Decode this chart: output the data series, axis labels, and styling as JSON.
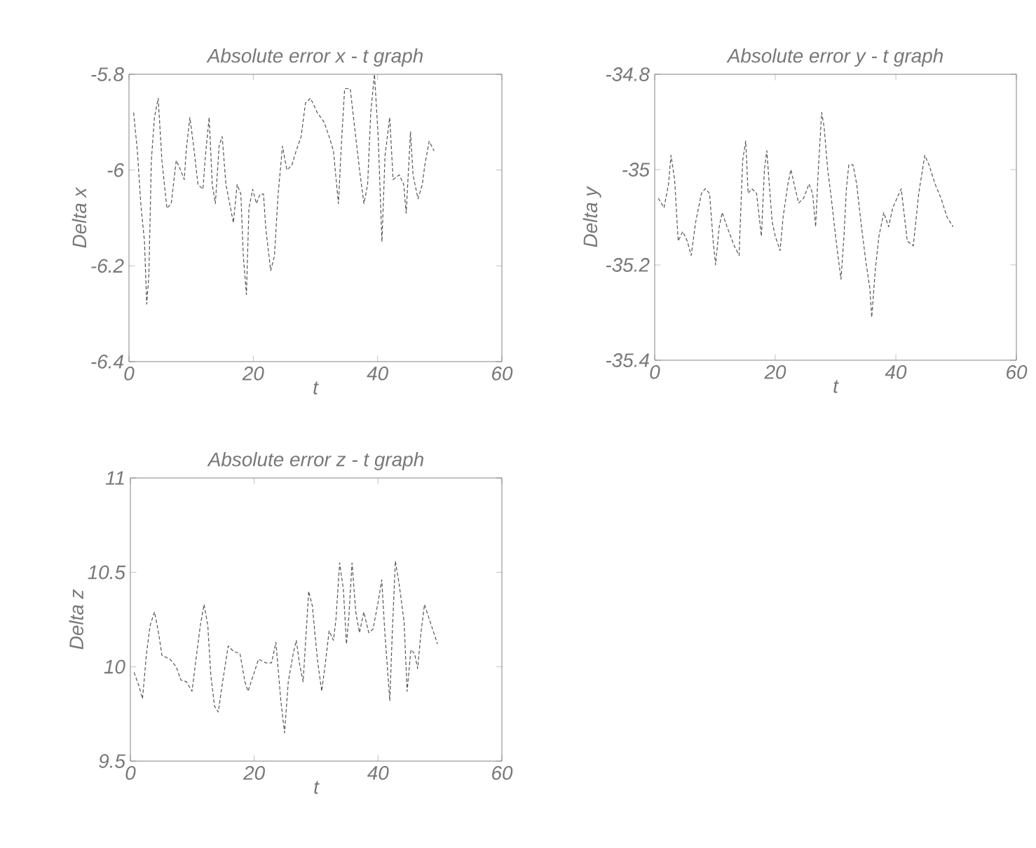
{
  "chart_data": [
    {
      "type": "line",
      "title": "Absolute error x - t graph",
      "xlabel": "t",
      "ylabel": "Delta x",
      "color": "#555555",
      "line_style": "dashed",
      "marker": "none",
      "grid": false,
      "xlim": [
        0,
        60
      ],
      "ylim": [
        -6.4,
        -5.8
      ],
      "xticks": [
        0,
        20,
        40,
        60
      ],
      "yticks": [
        -6.4,
        -6.2,
        -6,
        -5.8
      ],
      "x": [
        0.75,
        1.35,
        1.9,
        2.5,
        2.85,
        3.2,
        3.6,
        4.1,
        4.7,
        5.3,
        6.1,
        6.8,
        7.6,
        8.3,
        8.9,
        9.2,
        9.8,
        10.4,
        11.1,
        11.9,
        12.3,
        12.9,
        13.4,
        13.9,
        14.5,
        15.0,
        15.6,
        16.2,
        16.8,
        17.4,
        18.0,
        18.4,
        18.9,
        19.3,
        19.9,
        20.5,
        21.1,
        21.65,
        22.0,
        22.8,
        23.4,
        24.0,
        24.7,
        25.4,
        26.2,
        26.9,
        27.7,
        28.4,
        29.2,
        30.3,
        31.4,
        32.2,
        32.9,
        33.7,
        34.2,
        34.7,
        35.6,
        36.3,
        37.1,
        37.8,
        38.4,
        38.9,
        39.5,
        40.1,
        40.7,
        41.2,
        41.95,
        42.5,
        43.5,
        44.2,
        44.6,
        45.3,
        45.7,
        46.5,
        47.2,
        47.6,
        48.3,
        49.1
      ],
      "values": [
        -5.88,
        -5.96,
        -6.07,
        -6.15,
        -6.28,
        -6.22,
        -5.98,
        -5.89,
        -5.85,
        -5.98,
        -6.08,
        -6.07,
        -5.98,
        -6.0,
        -6.02,
        -5.96,
        -5.89,
        -5.95,
        -6.03,
        -6.04,
        -5.97,
        -5.89,
        -6.03,
        -6.07,
        -5.95,
        -5.93,
        -6.03,
        -6.07,
        -6.11,
        -6.03,
        -6.05,
        -6.18,
        -6.26,
        -6.08,
        -6.04,
        -6.07,
        -6.05,
        -6.05,
        -6.12,
        -6.21,
        -6.18,
        -6.05,
        -5.95,
        -6.0,
        -5.99,
        -5.96,
        -5.93,
        -5.86,
        -5.85,
        -5.88,
        -5.9,
        -5.93,
        -5.96,
        -6.07,
        -5.94,
        -5.83,
        -5.83,
        -5.91,
        -6.0,
        -6.07,
        -6.03,
        -5.88,
        -5.8,
        -5.93,
        -6.15,
        -5.97,
        -5.89,
        -6.02,
        -6.01,
        -6.03,
        -6.09,
        -5.92,
        -6.01,
        -6.06,
        -6.03,
        -5.99,
        -5.94,
        -5.96
      ]
    },
    {
      "type": "line",
      "title": "Absolute error y - t graph",
      "xlabel": "t",
      "ylabel": "Delta y",
      "color": "#555555",
      "line_style": "dashed",
      "marker": "none",
      "grid": false,
      "xlim": [
        0,
        60
      ],
      "ylim": [
        -35.4,
        -34.8
      ],
      "xticks": [
        0,
        20,
        40,
        60
      ],
      "yticks": [
        -35.4,
        -35.2,
        -35,
        -34.8
      ],
      "x": [
        0.6,
        1.55,
        2.3,
        2.7,
        3.3,
        3.9,
        4.65,
        5.4,
        6.05,
        6.8,
        7.75,
        8.4,
        9.1,
        9.7,
        10.1,
        10.7,
        11.2,
        12.0,
        13.2,
        14.0,
        14.6,
        15.1,
        15.5,
        16.1,
        16.9,
        17.7,
        18.2,
        18.6,
        19.0,
        19.5,
        20.0,
        20.8,
        21.3,
        22.1,
        22.6,
        23.3,
        23.9,
        24.7,
        25.6,
        26.2,
        26.7,
        27.1,
        27.7,
        28.1,
        28.7,
        29.3,
        30.1,
        30.9,
        31.4,
        31.8,
        32.2,
        32.9,
        33.5,
        34.3,
        35.0,
        35.7,
        36.0,
        36.6,
        37.2,
        38.0,
        38.8,
        39.5,
        40.9,
        41.9,
        42.9,
        43.8,
        44.8,
        45.5,
        46.5,
        47.5,
        48.5,
        49.5
      ],
      "values": [
        -35.06,
        -35.08,
        -35.03,
        -34.97,
        -35.02,
        -35.15,
        -35.13,
        -35.15,
        -35.18,
        -35.11,
        -35.05,
        -35.04,
        -35.05,
        -35.15,
        -35.2,
        -35.12,
        -35.09,
        -35.12,
        -35.16,
        -35.18,
        -34.98,
        -34.94,
        -35.05,
        -35.04,
        -35.05,
        -35.14,
        -35.0,
        -34.96,
        -35.03,
        -35.11,
        -35.14,
        -35.17,
        -35.1,
        -35.03,
        -35.0,
        -35.04,
        -35.07,
        -35.06,
        -35.03,
        -35.05,
        -35.12,
        -35.01,
        -34.88,
        -34.91,
        -35.0,
        -35.06,
        -35.15,
        -35.23,
        -35.14,
        -35.04,
        -34.99,
        -34.99,
        -35.03,
        -35.12,
        -35.19,
        -35.25,
        -35.31,
        -35.21,
        -35.14,
        -35.09,
        -35.12,
        -35.08,
        -35.04,
        -35.15,
        -35.16,
        -35.05,
        -34.97,
        -34.99,
        -35.03,
        -35.06,
        -35.1,
        -35.12
      ]
    },
    {
      "type": "line",
      "title": "Absolute error z - t graph",
      "xlabel": "t",
      "ylabel": "Delta z",
      "color": "#555555",
      "line_style": "dashed",
      "marker": "none",
      "grid": false,
      "xlim": [
        0,
        60
      ],
      "ylim": [
        9.5,
        11
      ],
      "xticks": [
        0,
        20,
        40,
        60
      ],
      "yticks": [
        9.5,
        10,
        10.5,
        11
      ],
      "x": [
        0.6,
        1.36,
        1.96,
        2.6,
        3.2,
        3.9,
        4.5,
        5.1,
        6.4,
        7.4,
        8.15,
        9.05,
        9.96,
        10.6,
        11.3,
        11.9,
        12.5,
        13.0,
        13.6,
        14.2,
        14.9,
        15.8,
        16.7,
        17.7,
        18.5,
        19.0,
        19.8,
        20.7,
        21.9,
        22.8,
        23.5,
        24.3,
        24.9,
        25.5,
        26.3,
        26.8,
        27.3,
        27.9,
        28.8,
        29.4,
        30.2,
        30.9,
        31.5,
        32.1,
        32.8,
        33.2,
        33.8,
        34.4,
        34.9,
        35.3,
        35.8,
        36.4,
        37.0,
        37.7,
        38.5,
        39.2,
        40.0,
        40.6,
        41.1,
        41.9,
        42.3,
        42.8,
        43.4,
        44.2,
        44.7,
        45.3,
        45.9,
        46.4,
        46.9,
        47.5,
        48.4,
        49.6
      ],
      "values": [
        9.97,
        9.9,
        9.83,
        10.07,
        10.22,
        10.29,
        10.19,
        10.06,
        10.04,
        10.0,
        9.93,
        9.92,
        9.87,
        10.04,
        10.22,
        10.33,
        10.22,
        9.95,
        9.79,
        9.76,
        9.92,
        10.11,
        10.08,
        10.07,
        9.92,
        9.87,
        9.95,
        10.04,
        10.02,
        10.02,
        10.13,
        9.82,
        9.65,
        9.92,
        10.07,
        10.14,
        10.02,
        9.92,
        10.4,
        10.32,
        10.04,
        9.87,
        10.02,
        10.19,
        10.14,
        10.25,
        10.55,
        10.41,
        10.12,
        10.27,
        10.55,
        10.29,
        10.18,
        10.29,
        10.18,
        10.2,
        10.34,
        10.46,
        10.18,
        9.82,
        10.18,
        10.56,
        10.44,
        10.24,
        9.87,
        10.09,
        10.07,
        9.99,
        10.17,
        10.33,
        10.24,
        10.12
      ]
    }
  ]
}
